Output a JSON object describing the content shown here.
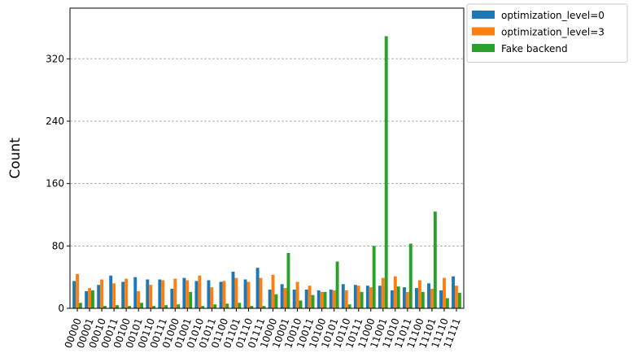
{
  "chart_data": {
    "type": "bar",
    "ylabel": "Count",
    "xlabel": "",
    "ylim": [
      0,
      385
    ],
    "yticks": [
      0,
      80,
      160,
      240,
      320
    ],
    "grid": "horizontal dashed",
    "legend_placement": "outside top-right",
    "categories": [
      "00000",
      "00001",
      "00010",
      "00011",
      "00100",
      "00101",
      "00110",
      "00111",
      "01000",
      "01001",
      "01010",
      "01011",
      "01100",
      "01101",
      "01110",
      "01111",
      "10000",
      "10001",
      "10010",
      "10011",
      "10100",
      "10101",
      "10110",
      "10111",
      "11000",
      "11001",
      "11010",
      "11011",
      "11100",
      "11101",
      "11110",
      "11111"
    ],
    "series": [
      {
        "name": "optimization_level=0",
        "color": "#1f77b4",
        "values": [
          35,
          22,
          30,
          42,
          34,
          40,
          37,
          37,
          25,
          39,
          35,
          36,
          34,
          47,
          37,
          52,
          24,
          31,
          24,
          24,
          23,
          24,
          31,
          30,
          29,
          29,
          23,
          27,
          26,
          32,
          23,
          41
        ]
      },
      {
        "name": "optimization_level=3",
        "color": "#ff7f0e",
        "values": [
          44,
          26,
          37,
          32,
          38,
          22,
          30,
          36,
          38,
          36,
          42,
          27,
          35,
          39,
          34,
          39,
          43,
          26,
          34,
          29,
          21,
          23,
          23,
          29,
          27,
          39,
          41,
          21,
          36,
          25,
          39,
          29
        ]
      },
      {
        "name": "Fake backend",
        "color": "#2ca02c",
        "values": [
          7,
          23,
          3,
          4,
          3,
          7,
          3,
          4,
          5,
          21,
          3,
          5,
          6,
          7,
          3,
          3,
          18,
          71,
          10,
          17,
          21,
          60,
          5,
          21,
          80,
          349,
          28,
          83,
          21,
          124,
          13,
          20
        ]
      }
    ]
  }
}
